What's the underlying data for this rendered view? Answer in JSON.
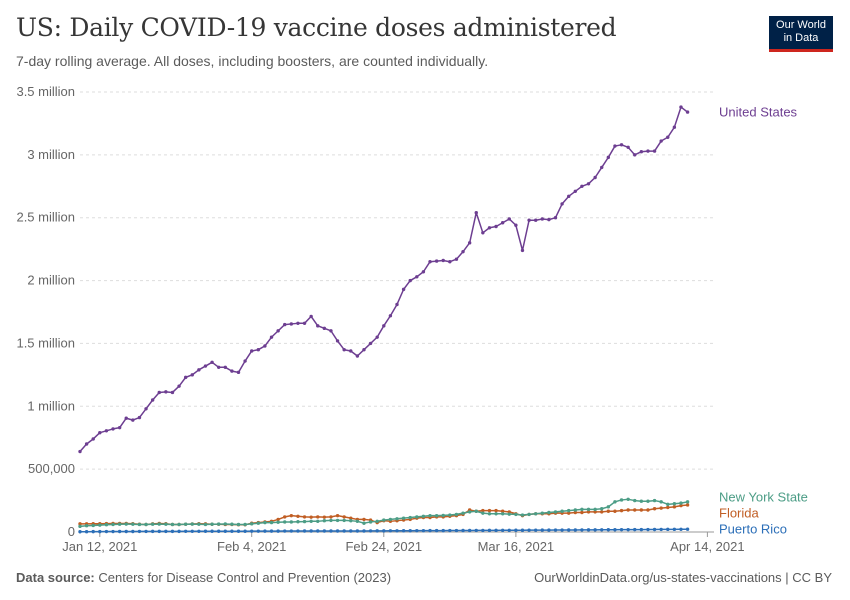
{
  "header": {
    "title": "US: Daily COVID-19 vaccine doses administered",
    "subtitle": "7-day rolling average. All doses, including boosters, are counted individually."
  },
  "logo": {
    "line1": "Our World",
    "line2": "in Data"
  },
  "footer": {
    "source_label": "Data source:",
    "source_text": "Centers for Disease Control and Prevention (2023)",
    "link": "OurWorldinData.org/us-states-vaccinations | CC BY"
  },
  "colors": {
    "United States": "#6d3e91",
    "New York State": "#4c9d86",
    "Florida": "#c15e24",
    "Puerto Rico": "#2c6fb8",
    "grid": "#dddddd",
    "axis": "#999999",
    "text": "#666666"
  },
  "chart_data": {
    "type": "line",
    "x_start": "Jan 9, 2021",
    "x_end": "Apr 15, 2021",
    "ylim": [
      0,
      3500000
    ],
    "y_ticks": [
      {
        "value": 0,
        "label": "0"
      },
      {
        "value": 500000,
        "label": "500,000"
      },
      {
        "value": 1000000,
        "label": "1 million"
      },
      {
        "value": 1500000,
        "label": "1.5 million"
      },
      {
        "value": 2000000,
        "label": "2 million"
      },
      {
        "value": 2500000,
        "label": "2.5 million"
      },
      {
        "value": 3000000,
        "label": "3 million"
      },
      {
        "value": 3500000,
        "label": "3.5 million"
      }
    ],
    "x_ticks": [
      {
        "date": "Jan 12, 2021",
        "label": "Jan 12, 2021"
      },
      {
        "date": "Feb 4, 2021",
        "label": "Feb 4, 2021"
      },
      {
        "date": "Feb 24, 2021",
        "label": "Feb 24, 2021"
      },
      {
        "date": "Mar 16, 2021",
        "label": "Mar 16, 2021"
      },
      {
        "date": "Apr 14, 2021",
        "label": "Apr 14, 2021"
      }
    ],
    "grid": true,
    "legend": "labels at line ends (right)",
    "series": [
      {
        "name": "United States",
        "values": [
          640000,
          700000,
          740000,
          790000,
          805000,
          820000,
          830000,
          905000,
          890000,
          910000,
          980000,
          1050000,
          1110000,
          1115000,
          1110000,
          1160000,
          1230000,
          1250000,
          1290000,
          1320000,
          1350000,
          1310000,
          1310000,
          1280000,
          1270000,
          1360000,
          1440000,
          1450000,
          1480000,
          1550000,
          1600000,
          1650000,
          1655000,
          1660000,
          1660000,
          1715000,
          1640000,
          1620000,
          1600000,
          1520000,
          1450000,
          1440000,
          1400000,
          1450000,
          1500000,
          1550000,
          1640000,
          1720000,
          1810000,
          1930000,
          2000000,
          2030000,
          2070000,
          2150000,
          2155000,
          2160000,
          2150000,
          2170000,
          2230000,
          2300000,
          2540000,
          2380000,
          2420000,
          2430000,
          2460000,
          2490000,
          2440000,
          2240000,
          2480000,
          2480000,
          2490000,
          2485000,
          2500000,
          2610000,
          2670000,
          2710000,
          2750000,
          2770000,
          2820000,
          2900000,
          2980000,
          3070000,
          3080000,
          3060000,
          3000000,
          3025000,
          3030000,
          3030000,
          3110000,
          3140000,
          3220000,
          3380000,
          3340000
        ]
      },
      {
        "name": "New York State",
        "values": [
          45000,
          50000,
          52000,
          55000,
          58000,
          60000,
          62000,
          63000,
          62000,
          60000,
          60000,
          62000,
          63000,
          62000,
          60000,
          60000,
          62000,
          63000,
          62000,
          60000,
          62000,
          63000,
          64000,
          62000,
          60000,
          60000,
          65000,
          70000,
          75000,
          75000,
          78000,
          80000,
          80000,
          82000,
          83000,
          85000,
          85000,
          90000,
          92000,
          92000,
          92000,
          90000,
          85000,
          70000,
          80000,
          85000,
          95000,
          100000,
          105000,
          110000,
          115000,
          120000,
          125000,
          130000,
          130000,
          132000,
          135000,
          140000,
          150000,
          160000,
          165000,
          150000,
          145000,
          145000,
          145000,
          142000,
          140000,
          135000,
          140000,
          145000,
          150000,
          155000,
          160000,
          165000,
          170000,
          175000,
          180000,
          180000,
          180000,
          185000,
          200000,
          240000,
          255000,
          260000,
          250000,
          245000,
          245000,
          250000,
          240000,
          220000,
          225000,
          230000,
          240000
        ]
      },
      {
        "name": "Florida",
        "values": [
          65000,
          65000,
          66000,
          66000,
          67000,
          68000,
          68000,
          68000,
          66000,
          62000,
          60000,
          65000,
          68000,
          66000,
          60000,
          60000,
          62000,
          64000,
          66000,
          65000,
          62000,
          62000,
          60000,
          60000,
          58000,
          58000,
          70000,
          75000,
          80000,
          85000,
          100000,
          120000,
          130000,
          125000,
          120000,
          118000,
          120000,
          118000,
          120000,
          130000,
          120000,
          110000,
          100000,
          100000,
          95000,
          75000,
          90000,
          85000,
          90000,
          95000,
          100000,
          110000,
          115000,
          115000,
          120000,
          120000,
          125000,
          130000,
          140000,
          175000,
          165000,
          170000,
          170000,
          170000,
          165000,
          160000,
          145000,
          130000,
          140000,
          145000,
          145000,
          145000,
          150000,
          150000,
          150000,
          155000,
          155000,
          160000,
          160000,
          160000,
          165000,
          165000,
          170000,
          175000,
          175000,
          175000,
          175000,
          185000,
          190000,
          195000,
          200000,
          210000,
          215000
        ]
      },
      {
        "name": "Puerto Rico",
        "values": [
          2000,
          2500,
          3000,
          3000,
          3500,
          3500,
          4000,
          4000,
          4000,
          4500,
          4500,
          5000,
          5000,
          5000,
          5000,
          5000,
          5500,
          5500,
          5500,
          6000,
          6000,
          6000,
          6000,
          6000,
          6000,
          6000,
          6500,
          6500,
          7000,
          7000,
          7000,
          7500,
          7500,
          7500,
          8000,
          8000,
          8000,
          8000,
          8000,
          8000,
          8000,
          8000,
          8000,
          8000,
          8500,
          9000,
          9000,
          9500,
          9500,
          10000,
          10000,
          10500,
          10500,
          11000,
          11000,
          11000,
          11500,
          11500,
          12000,
          12000,
          12500,
          12500,
          13000,
          13000,
          13500,
          13500,
          14000,
          14000,
          14500,
          14500,
          15000,
          15000,
          15500,
          15500,
          16000,
          16000,
          16500,
          17000,
          17000,
          17500,
          18000,
          18000,
          18500,
          18500,
          19000,
          19000,
          19500,
          20000,
          20500,
          21000,
          21000,
          21500,
          22000
        ]
      }
    ]
  }
}
